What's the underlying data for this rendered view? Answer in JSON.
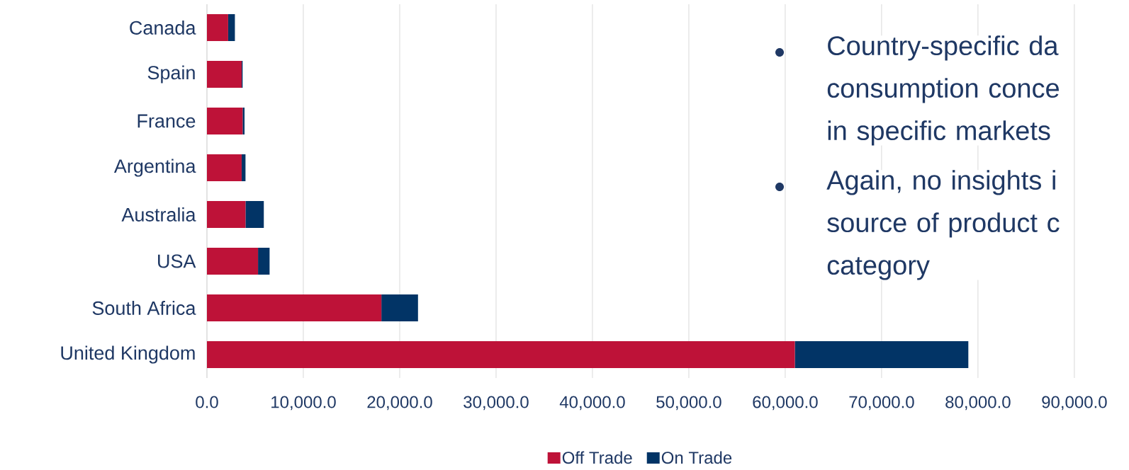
{
  "chart_data": {
    "type": "bar",
    "orientation": "horizontal",
    "stacked": true,
    "categories": [
      "Canada",
      "Spain",
      "France",
      "Argentina",
      "Australia",
      "USA",
      "South Africa",
      "United Kingdom"
    ],
    "series": [
      {
        "name": "Off Trade",
        "color": "#be1238",
        "values": [
          2200,
          3600,
          3700,
          3600,
          4000,
          5300,
          18100,
          61000
        ]
      },
      {
        "name": "On Trade",
        "color": "#023466",
        "values": [
          700,
          100,
          200,
          400,
          1900,
          1200,
          3800,
          18000
        ]
      }
    ],
    "xlim": [
      0,
      90000
    ],
    "xticks": [
      {
        "value": 0,
        "label": "0.0"
      },
      {
        "value": 10000,
        "label": "10,000.0"
      },
      {
        "value": 20000,
        "label": "20,000.0"
      },
      {
        "value": 30000,
        "label": "30,000.0"
      },
      {
        "value": 40000,
        "label": "40,000.0"
      },
      {
        "value": 50000,
        "label": "50,000.0"
      },
      {
        "value": 60000,
        "label": "60,000.0"
      },
      {
        "value": 70000,
        "label": "70,000.0"
      },
      {
        "value": 80000,
        "label": "80,000.0"
      },
      {
        "value": 90000,
        "label": "90,000.0"
      }
    ],
    "grid": "x",
    "legend": "bottom",
    "annotations": [
      "Country-specific da consumption conce in specific markets",
      "Again, no insights i source of product c category"
    ]
  }
}
